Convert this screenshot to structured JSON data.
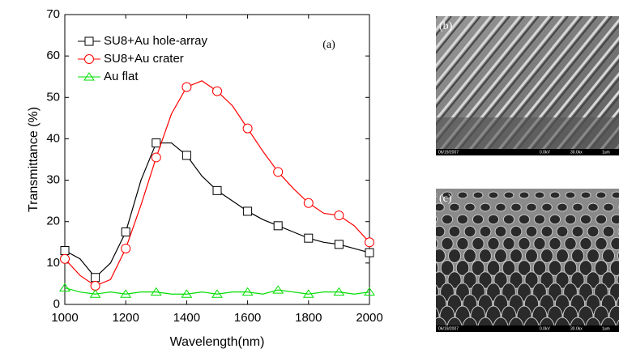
{
  "chart_data": {
    "type": "line",
    "annotation": "(a)",
    "x_label": "Wavelength(nm)",
    "y_label": "Transmittance (%)",
    "x": [
      1000,
      1050,
      1100,
      1150,
      1200,
      1250,
      1300,
      1350,
      1400,
      1450,
      1500,
      1550,
      1600,
      1650,
      1700,
      1750,
      1800,
      1850,
      1900,
      1950,
      2000
    ],
    "series": [
      {
        "name": "SU8+Au hole-array",
        "color": "#000000",
        "marker": "square",
        "values": [
          13,
          11,
          6.5,
          10,
          17.5,
          30,
          39,
          39,
          36,
          31,
          27.5,
          25,
          22.5,
          20.5,
          19,
          17.5,
          16,
          15,
          14.5,
          13.5,
          12.5
        ]
      },
      {
        "name": "SU8+Au crater",
        "color": "#ff0000",
        "marker": "circle",
        "values": [
          11,
          7,
          4.5,
          6,
          13.5,
          24,
          35.5,
          46,
          52.5,
          54,
          51.5,
          48,
          42.5,
          37,
          32,
          28,
          24.5,
          22,
          21.5,
          19,
          15
        ]
      },
      {
        "name": "Au flat",
        "color": "#00dd00",
        "marker": "triangle",
        "values": [
          4,
          3,
          2.5,
          3,
          2.5,
          3,
          3,
          2.5,
          2.5,
          3,
          2.5,
          3,
          3,
          2.5,
          3.5,
          3,
          2.5,
          3,
          3,
          2.5,
          3
        ]
      }
    ],
    "xlim": [
      1000,
      2000
    ],
    "xticks": [
      1000,
      1200,
      1400,
      1600,
      1800,
      2000
    ],
    "ylim": [
      0,
      70
    ],
    "yticks": [
      0,
      10,
      20,
      30,
      40,
      50,
      60,
      70
    ],
    "legend": "upper left"
  },
  "panels": [
    {
      "label": "(b)",
      "footer": [
        "06/19/2007",
        "0.0kV",
        "30.0kx",
        "1um"
      ]
    },
    {
      "label": "(c)",
      "footer": [
        "06/19/2007",
        "0.0kV",
        "30.0kx",
        "1um"
      ]
    }
  ]
}
